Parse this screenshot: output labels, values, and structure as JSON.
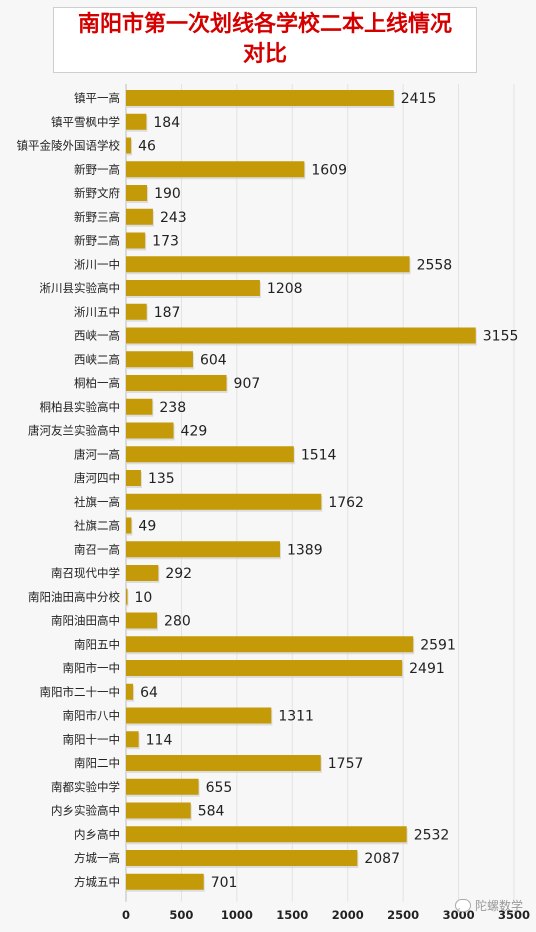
{
  "chart_data": {
    "type": "bar",
    "orientation": "horizontal",
    "title": "南阳市第一次划线各学校二本上线情况对比",
    "categories": [
      "镇平一高",
      "镇平雪枫中学",
      "镇平金陵外国语学校",
      "新野一高",
      "新野文府",
      "新野三高",
      "新野二高",
      "淅川一中",
      "淅川县实验高中",
      "淅川五中",
      "西峡一高",
      "西峡二高",
      "桐柏一高",
      "桐柏县实验高中",
      "唐河友兰实验高中",
      "唐河一高",
      "唐河四中",
      "社旗一高",
      "社旗二高",
      "南召一高",
      "南召现代中学",
      "南阳油田高中分校",
      "南阳油田高中",
      "南阳五中",
      "南阳市一中",
      "南阳市二十一中",
      "南阳市八中",
      "南阳十一中",
      "南阳二中",
      "南都实验中学",
      "内乡实验高中",
      "内乡高中",
      "方城一高",
      "方城五中"
    ],
    "values": [
      2415,
      184,
      46,
      1609,
      190,
      243,
      173,
      2558,
      1208,
      187,
      3155,
      604,
      907,
      238,
      429,
      1514,
      135,
      1762,
      49,
      1389,
      292,
      10,
      280,
      2591,
      2491,
      64,
      1311,
      114,
      1757,
      655,
      584,
      2532,
      2087,
      701
    ],
    "xticks": [
      "0",
      "500",
      "1000",
      "1500",
      "2000",
      "2500",
      "3000",
      "3500"
    ],
    "xlim": [
      0,
      3500
    ],
    "bar_color": "#c49a08",
    "grid": true,
    "legend": "none"
  },
  "watermark": "陀螺数学"
}
